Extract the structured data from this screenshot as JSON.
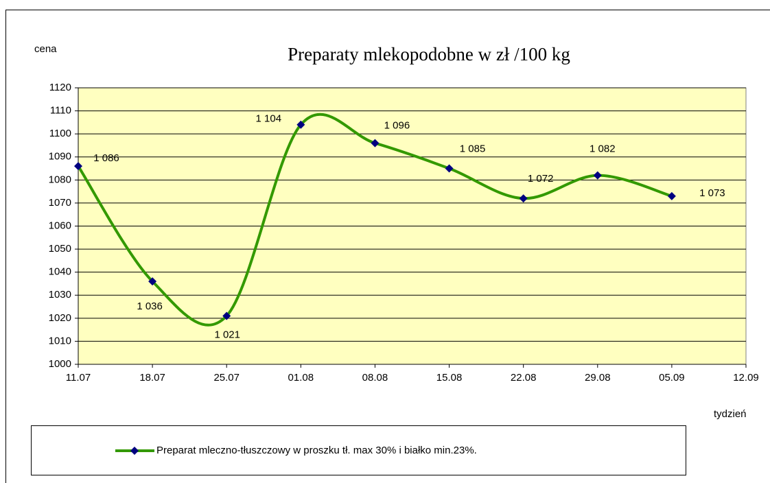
{
  "chart_data": {
    "type": "line",
    "title": "Preparaty mlekopodobne w zł /100 kg",
    "y_label": "cena",
    "x_label": "tydzień",
    "categories": [
      "11.07",
      "18.07",
      "25.07",
      "01.08",
      "08.08",
      "15.08",
      "22.08",
      "29.08",
      "05.09",
      "12.09"
    ],
    "series": [
      {
        "name": "Preparat mleczno-tłuszczowy w proszku tł. max 30% i białko min.23%.",
        "color": "#339900",
        "marker_color": "#000080",
        "values": [
          1086,
          1036,
          1021,
          1104,
          1096,
          1085,
          1072,
          1082,
          1073,
          null
        ],
        "value_labels": [
          "1 086",
          "1 036",
          "1 021",
          "1 104",
          "1 096",
          "1 085",
          "1 072",
          "1 082",
          "1 073",
          null
        ]
      }
    ],
    "ylim": [
      1000,
      1120
    ],
    "yticks": [
      1000,
      1010,
      1020,
      1030,
      1040,
      1050,
      1060,
      1070,
      1080,
      1090,
      1100,
      1110,
      1120
    ],
    "grid": true,
    "smooth": true,
    "plot_background": "#ffffc0",
    "legend": "bottom"
  }
}
